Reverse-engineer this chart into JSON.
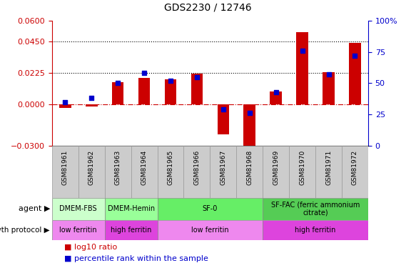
{
  "title": "GDS2230 / 12746",
  "samples": [
    "GSM81961",
    "GSM81962",
    "GSM81963",
    "GSM81964",
    "GSM81965",
    "GSM81966",
    "GSM81967",
    "GSM81968",
    "GSM81969",
    "GSM81970",
    "GSM81971",
    "GSM81972"
  ],
  "log10_ratio": [
    -0.003,
    -0.002,
    0.016,
    0.019,
    0.018,
    0.022,
    -0.022,
    -0.034,
    0.009,
    0.052,
    0.023,
    0.044
  ],
  "percentile_rank": [
    35,
    38,
    50,
    58,
    52,
    55,
    29,
    26,
    43,
    76,
    57,
    72
  ],
  "ylim_left": [
    -0.03,
    0.06
  ],
  "ylim_right": [
    0,
    100
  ],
  "yticks_left": [
    -0.03,
    0,
    0.0225,
    0.045,
    0.06
  ],
  "yticks_right": [
    0,
    25,
    50,
    75,
    100
  ],
  "hlines": [
    0.0225,
    0.045
  ],
  "bar_color": "#cc0000",
  "dot_color": "#0000cc",
  "zero_line_color": "#cc0000",
  "agent_groups": [
    {
      "label": "DMEM-FBS",
      "start": 0,
      "end": 2,
      "color": "#ccffcc"
    },
    {
      "label": "DMEM-Hemin",
      "start": 2,
      "end": 4,
      "color": "#99ff99"
    },
    {
      "label": "SF-0",
      "start": 4,
      "end": 8,
      "color": "#66ee66"
    },
    {
      "label": "SF-FAC (ferric ammonium\ncitrate)",
      "start": 8,
      "end": 12,
      "color": "#55cc55"
    }
  ],
  "protocol_groups": [
    {
      "label": "low ferritin",
      "start": 0,
      "end": 2,
      "color": "#ee88ee"
    },
    {
      "label": "high ferritin",
      "start": 2,
      "end": 4,
      "color": "#dd44dd"
    },
    {
      "label": "low ferritin",
      "start": 4,
      "end": 8,
      "color": "#ee88ee"
    },
    {
      "label": "high ferritin",
      "start": 8,
      "end": 12,
      "color": "#dd44dd"
    }
  ],
  "agent_label": "agent",
  "protocol_label": "growth protocol",
  "legend_ratio_label": "log10 ratio",
  "legend_pct_label": "percentile rank within the sample",
  "left_axis_color": "#cc0000",
  "right_axis_color": "#0000cc",
  "background_color": "#ffffff",
  "plot_bg_color": "#ffffff",
  "xtick_box_color": "#cccccc"
}
